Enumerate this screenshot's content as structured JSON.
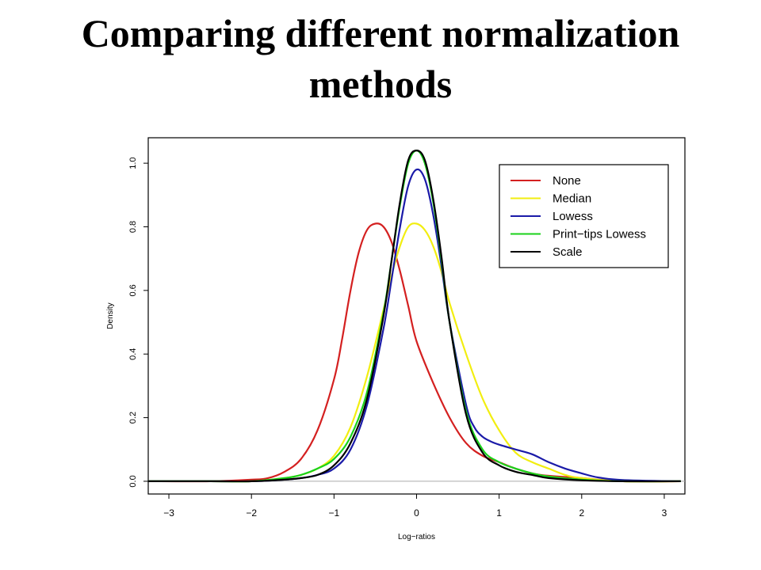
{
  "slide": {
    "title_line1": "Comparing different normalization",
    "title_line2": "methods"
  },
  "chart_data": {
    "type": "line",
    "xlabel": "Log−ratios",
    "ylabel": "Density",
    "xlim": [
      -3.25,
      3.25
    ],
    "ylim": [
      -0.04,
      1.08
    ],
    "x_ticks": [
      -3,
      -2,
      -1,
      0,
      1,
      2,
      3
    ],
    "x_tick_labels": [
      "−3",
      "−2",
      "−1",
      "0",
      "1",
      "2",
      "3"
    ],
    "y_ticks": [
      0.0,
      0.2,
      0.4,
      0.6,
      0.8,
      1.0
    ],
    "y_tick_labels": [
      "0.0",
      "0.2",
      "0.4",
      "0.6",
      "0.8",
      "1.0"
    ],
    "grid": false,
    "baseline": 0,
    "legend_position": "top-right",
    "series": [
      {
        "name": "None",
        "color": "#d42020",
        "x": [
          -3.3,
          -2.5,
          -2.0,
          -1.8,
          -1.6,
          -1.4,
          -1.2,
          -1.0,
          -0.9,
          -0.8,
          -0.7,
          -0.6,
          -0.5,
          -0.4,
          -0.3,
          -0.2,
          -0.1,
          0.0,
          0.2,
          0.4,
          0.6,
          0.8,
          1.0,
          1.2,
          1.5,
          2.0,
          2.5,
          3.2
        ],
        "y": [
          0,
          0.0,
          0.005,
          0.01,
          0.03,
          0.07,
          0.16,
          0.32,
          0.45,
          0.6,
          0.72,
          0.79,
          0.81,
          0.8,
          0.75,
          0.66,
          0.55,
          0.44,
          0.31,
          0.2,
          0.12,
          0.08,
          0.06,
          0.04,
          0.02,
          0.01,
          0.0,
          0
        ]
      },
      {
        "name": "Median",
        "color": "#f2ee10",
        "x": [
          -3.3,
          -2.5,
          -2.0,
          -1.6,
          -1.4,
          -1.2,
          -1.0,
          -0.8,
          -0.6,
          -0.4,
          -0.3,
          -0.2,
          -0.1,
          0.0,
          0.1,
          0.2,
          0.3,
          0.4,
          0.6,
          0.8,
          1.0,
          1.2,
          1.4,
          1.6,
          1.8,
          2.0,
          2.5,
          3.2
        ],
        "y": [
          0,
          0.0,
          0.0,
          0.01,
          0.02,
          0.04,
          0.08,
          0.17,
          0.33,
          0.54,
          0.65,
          0.74,
          0.8,
          0.81,
          0.79,
          0.74,
          0.66,
          0.56,
          0.4,
          0.26,
          0.16,
          0.09,
          0.06,
          0.04,
          0.02,
          0.01,
          0.0,
          0
        ]
      },
      {
        "name": "Lowess",
        "color": "#1a1aa8",
        "x": [
          -3.3,
          -2.5,
          -2.0,
          -1.6,
          -1.4,
          -1.2,
          -1.0,
          -0.8,
          -0.6,
          -0.4,
          -0.3,
          -0.2,
          -0.1,
          0.0,
          0.1,
          0.2,
          0.3,
          0.4,
          0.6,
          0.7,
          0.8,
          0.9,
          1.0,
          1.2,
          1.4,
          1.6,
          1.8,
          2.0,
          2.2,
          2.5,
          3.2
        ],
        "y": [
          0,
          0.0,
          0.0,
          0.005,
          0.01,
          0.02,
          0.04,
          0.1,
          0.24,
          0.48,
          0.64,
          0.8,
          0.93,
          0.98,
          0.95,
          0.84,
          0.68,
          0.5,
          0.24,
          0.17,
          0.14,
          0.125,
          0.115,
          0.1,
          0.085,
          0.06,
          0.04,
          0.025,
          0.012,
          0.004,
          0
        ]
      },
      {
        "name": "Print−tips Lowess",
        "color": "#1ad21a",
        "x": [
          -3.3,
          -2.5,
          -2.0,
          -1.6,
          -1.4,
          -1.2,
          -1.0,
          -0.8,
          -0.6,
          -0.4,
          -0.3,
          -0.2,
          -0.1,
          0.0,
          0.1,
          0.2,
          0.3,
          0.4,
          0.6,
          0.8,
          1.0,
          1.2,
          1.4,
          1.6,
          2.0,
          2.5,
          3.2
        ],
        "y": [
          0,
          0.0,
          0.0,
          0.01,
          0.02,
          0.04,
          0.07,
          0.14,
          0.28,
          0.53,
          0.7,
          0.87,
          1.0,
          1.04,
          1.0,
          0.88,
          0.7,
          0.5,
          0.22,
          0.1,
          0.06,
          0.04,
          0.025,
          0.015,
          0.005,
          0.0,
          0
        ]
      },
      {
        "name": "Scale",
        "color": "#000000",
        "x": [
          -3.3,
          -2.5,
          -2.0,
          -1.6,
          -1.4,
          -1.2,
          -1.0,
          -0.8,
          -0.6,
          -0.4,
          -0.3,
          -0.2,
          -0.1,
          0.0,
          0.1,
          0.2,
          0.3,
          0.4,
          0.6,
          0.8,
          1.0,
          1.2,
          1.4,
          1.6,
          2.0,
          2.5,
          3.2
        ],
        "y": [
          0,
          0.0,
          0.0,
          0.005,
          0.01,
          0.02,
          0.05,
          0.12,
          0.26,
          0.52,
          0.7,
          0.88,
          1.01,
          1.04,
          1.01,
          0.89,
          0.71,
          0.5,
          0.21,
          0.09,
          0.05,
          0.03,
          0.02,
          0.01,
          0.003,
          0.0,
          0
        ]
      }
    ]
  }
}
